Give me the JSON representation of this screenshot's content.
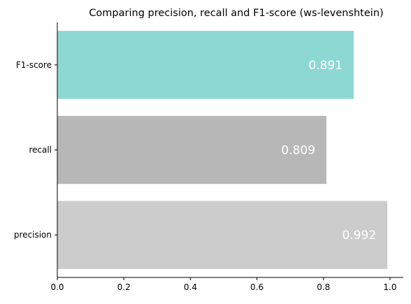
{
  "chart_data": {
    "type": "bar",
    "orientation": "horizontal",
    "title": "Comparing precision, recall and F1-score (ws-levenshtein)",
    "categories": [
      "precision",
      "recall",
      "F1-score"
    ],
    "values": [
      0.992,
      0.809,
      0.891
    ],
    "value_labels": [
      "0.992",
      "0.809",
      "0.891"
    ],
    "colors": [
      "#cccccc",
      "#b7b7b7",
      "#8ed8d3"
    ],
    "xlim": [
      0,
      1.04
    ],
    "xticks": [
      0.0,
      0.2,
      0.4,
      0.6,
      0.8,
      1.0
    ],
    "xtick_labels": [
      "0.0",
      "0.2",
      "0.4",
      "0.6",
      "0.8",
      "1.0"
    ],
    "xlabel": "",
    "ylabel": "",
    "grid": false,
    "spines": [
      "left",
      "bottom"
    ]
  }
}
